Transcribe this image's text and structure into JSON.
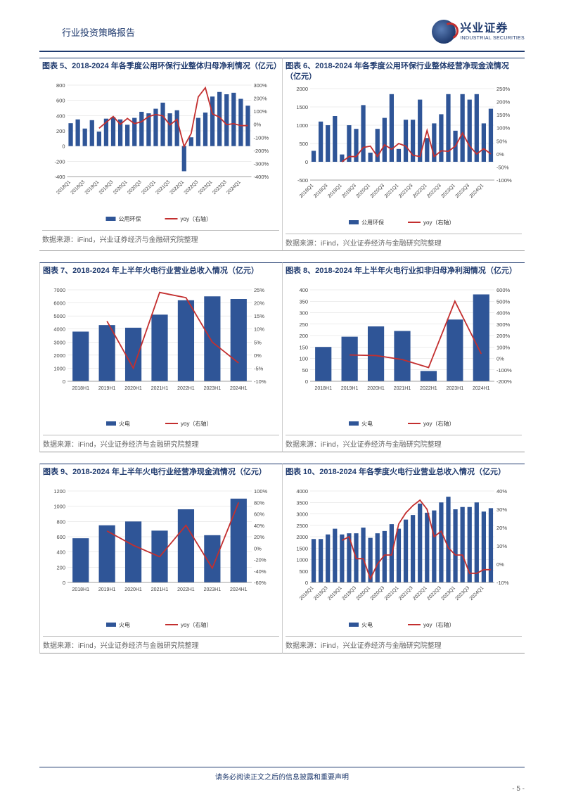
{
  "header": {
    "report_type": "行业投资策略报告",
    "logo_cn": "兴业证券",
    "logo_en": "INDUSTRIAL SECURITIES"
  },
  "colors": {
    "brand_blue": "#1f3a6e",
    "bar_blue": "#2f5597",
    "line_red": "#c32f2f",
    "axis": "#888888",
    "grid": "#d9d9d9",
    "background": "#ffffff"
  },
  "source_text": "数据来源：iFind，兴业证券经济与金融研究院整理",
  "footer": {
    "disclaimer": "请务必阅读正文之后的信息披露和重要声明",
    "page": "- 5 -"
  },
  "charts": [
    {
      "id": "fig5",
      "title": "图表 5、2018-2024 年各季度公用环保行业整体归母净利情况（亿元）",
      "legend_bar": "公用环保",
      "legend_line": "yoy（右轴）",
      "x_labels": [
        "2018Q1",
        "2018Q3",
        "2019Q1",
        "2019Q3",
        "2020Q1",
        "2020Q3",
        "2021Q1",
        "2021Q3",
        "2022Q1",
        "2022Q3",
        "2023Q1",
        "2023Q3",
        "2024Q1"
      ],
      "x_label_rotate": -45,
      "y_left": {
        "min": -400,
        "max": 800,
        "step": 200
      },
      "y_right": {
        "min": -400,
        "max": 300,
        "step": 100,
        "suffix": "%"
      },
      "bars": [
        300,
        350,
        230,
        340,
        190,
        360,
        380,
        350,
        280,
        370,
        450,
        430,
        490,
        570,
        430,
        470,
        -330,
        115,
        370,
        440,
        650,
        710,
        680,
        700,
        620,
        530
      ],
      "line": [
        null,
        null,
        null,
        null,
        -30,
        15,
        60,
        0,
        45,
        5,
        20,
        60,
        75,
        65,
        -5,
        38,
        -170,
        -70,
        210,
        280,
        80,
        55,
        -3,
        5,
        -10,
        -10
      ],
      "bar_count": 26
    },
    {
      "id": "fig6",
      "title": "图表 6、2018-2024 年各季度公用环保行业整体经营净现金流情况（亿元）",
      "legend_bar": "公用环保",
      "legend_line": "yoy（右轴）",
      "x_labels": [
        "2018Q1",
        "2018Q3",
        "2019Q1",
        "2019Q3",
        "2020Q1",
        "2020Q3",
        "2021Q1",
        "2021Q3",
        "2022Q1",
        "2022Q3",
        "2023Q1",
        "2023Q3",
        "2024Q1"
      ],
      "x_label_rotate": -45,
      "y_left": {
        "min": -500,
        "max": 2000,
        "step": 500
      },
      "y_right": {
        "min": -100,
        "max": 250,
        "step": 50,
        "suffix": "%"
      },
      "bars": [
        300,
        1100,
        1000,
        1250,
        200,
        1000,
        900,
        1550,
        250,
        900,
        1200,
        1850,
        350,
        1150,
        1150,
        1700,
        650,
        1050,
        1300,
        1850,
        850,
        1850,
        1700,
        1850,
        1050,
        1450
      ],
      "line": [
        null,
        null,
        null,
        null,
        -30,
        -10,
        -10,
        25,
        30,
        -10,
        35,
        18,
        40,
        30,
        -5,
        -10,
        90,
        -10,
        12,
        10,
        30,
        80,
        30,
        0,
        20,
        0
      ],
      "bar_count": 26
    },
    {
      "id": "fig7",
      "title": "图表 7、2018-2024 年上半年火电行业营业总收入情况（亿元）",
      "legend_bar": "火电",
      "legend_line": "yoy（右轴）",
      "x_labels": [
        "2018H1",
        "2019H1",
        "2020H1",
        "2021H1",
        "2022H1",
        "2023H1",
        "2024H1"
      ],
      "x_label_rotate": 0,
      "y_left": {
        "min": 0,
        "max": 7000,
        "step": 1000
      },
      "y_right": {
        "min": -10,
        "max": 25,
        "step": 5,
        "suffix": "%"
      },
      "bars": [
        3800,
        4300,
        4100,
        5100,
        6200,
        6500,
        6300
      ],
      "line": [
        null,
        13,
        -5,
        24,
        22,
        5,
        -3
      ],
      "bar_count": 7
    },
    {
      "id": "fig8",
      "title": "图表 8、2018-2024 年上半年火电行业扣非归母净利润情况（亿元）",
      "legend_bar": "火电",
      "legend_line": "yoy（右轴）",
      "x_labels": [
        "2018H1",
        "2019H1",
        "2020H1",
        "2021H1",
        "2022H1",
        "2023H1",
        "2024H1"
      ],
      "x_label_rotate": 0,
      "y_left": {
        "min": 0,
        "max": 400,
        "step": 50
      },
      "y_right": {
        "min": -200,
        "max": 600,
        "step": 100,
        "suffix": "%"
      },
      "bars": [
        150,
        195,
        240,
        220,
        45,
        270,
        380
      ],
      "line": [
        null,
        30,
        25,
        -10,
        -80,
        500,
        40
      ],
      "bar_count": 7
    },
    {
      "id": "fig9",
      "title": "图表 9、2018-2024 年上半年火电行业经营净现金流情况（亿元）",
      "legend_bar": "火电",
      "legend_line": "yoy（右轴）",
      "x_labels": [
        "2018H1",
        "2019H1",
        "2020H1",
        "2021H1",
        "2022H1",
        "2023H1",
        "2024H1"
      ],
      "x_label_rotate": 0,
      "y_left": {
        "min": 0,
        "max": 1200,
        "step": 200
      },
      "y_right": {
        "min": -60,
        "max": 100,
        "step": 20,
        "suffix": "%"
      },
      "bars": [
        580,
        750,
        800,
        680,
        960,
        620,
        1100
      ],
      "line": [
        null,
        30,
        5,
        -15,
        40,
        -35,
        80
      ],
      "bar_count": 7
    },
    {
      "id": "fig10",
      "title": "图表 10、2018-2024 年各季度火电行业营业总收入情况（亿元）",
      "legend_bar": "火电",
      "legend_line": "yoy（右轴）",
      "x_labels": [
        "2018Q1",
        "2018Q3",
        "2019Q1",
        "2019Q3",
        "2020Q1",
        "2020Q3",
        "2021Q1",
        "2021Q3",
        "2022Q1",
        "2022Q3",
        "2023Q1",
        "2023Q3",
        "2024Q1"
      ],
      "x_label_rotate": -45,
      "y_left": {
        "min": 0,
        "max": 4000,
        "step": 500
      },
      "y_right": {
        "min": -10,
        "max": 40,
        "step": 10,
        "suffix": "%"
      },
      "bars": [
        1900,
        1900,
        2100,
        2350,
        2100,
        2150,
        2150,
        2400,
        1950,
        2150,
        2250,
        2550,
        2350,
        2750,
        2950,
        3450,
        3050,
        3150,
        3500,
        3750,
        3200,
        3300,
        3300,
        3500,
        3100,
        3250
      ],
      "line": [
        null,
        null,
        null,
        null,
        13,
        15,
        3,
        3,
        -8,
        0,
        5,
        5,
        22,
        28,
        32,
        35,
        30,
        15,
        18,
        9,
        5,
        5,
        -5,
        -5,
        -3,
        -3
      ],
      "bar_count": 26
    }
  ]
}
